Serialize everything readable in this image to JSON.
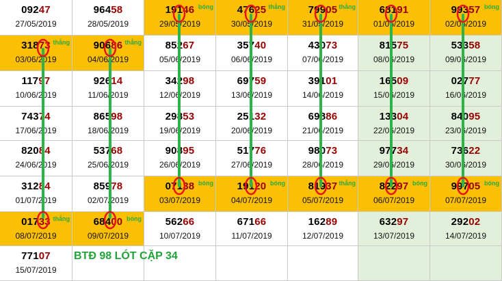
{
  "rows": [
    [
      {
        "num": "09247",
        "date": "27/05/2019",
        "tag": "",
        "bg": "white"
      },
      {
        "num": "96458",
        "date": "28/05/2019",
        "tag": "",
        "bg": "white"
      },
      {
        "num": "19146",
        "date": "29/05/2019",
        "tag": "bóng",
        "bg": "orange"
      },
      {
        "num": "47625",
        "date": "30/05/2019",
        "tag": "thẳng",
        "bg": "orange"
      },
      {
        "num": "79905",
        "date": "31/05/2019",
        "tag": "thẳng",
        "bg": "orange"
      },
      {
        "num": "68191",
        "date": "01/06/2019",
        "tag": "",
        "bg": "orange"
      },
      {
        "num": "99357",
        "date": "02/06/2019",
        "tag": "bóng",
        "bg": "orange"
      }
    ],
    [
      {
        "num": "31873",
        "date": "03/06/2019",
        "tag": "thẳng",
        "bg": "orange"
      },
      {
        "num": "90686",
        "date": "04/06/2019",
        "tag": "thẳng",
        "bg": "orange"
      },
      {
        "num": "85267",
        "date": "05/06/2019",
        "tag": "",
        "bg": "white"
      },
      {
        "num": "35740",
        "date": "06/06/2019",
        "tag": "",
        "bg": "white"
      },
      {
        "num": "43073",
        "date": "07/06/2019",
        "tag": "",
        "bg": "white"
      },
      {
        "num": "81575",
        "date": "08/06/2019",
        "tag": "",
        "bg": "green"
      },
      {
        "num": "53358",
        "date": "09/06/2019",
        "tag": "",
        "bg": "green"
      }
    ],
    [
      {
        "num": "11797",
        "date": "10/06/2019",
        "tag": "",
        "bg": "white"
      },
      {
        "num": "92614",
        "date": "11/06/2019",
        "tag": "",
        "bg": "white"
      },
      {
        "num": "34298",
        "date": "12/06/2019",
        "tag": "",
        "bg": "white"
      },
      {
        "num": "69759",
        "date": "13/06/2019",
        "tag": "",
        "bg": "white"
      },
      {
        "num": "39101",
        "date": "14/06/2019",
        "tag": "",
        "bg": "white"
      },
      {
        "num": "16509",
        "date": "15/06/2019",
        "tag": "",
        "bg": "green"
      },
      {
        "num": "02777",
        "date": "16/06/2019",
        "tag": "",
        "bg": "green"
      }
    ],
    [
      {
        "num": "74374",
        "date": "17/06/2019",
        "tag": "",
        "bg": "white"
      },
      {
        "num": "86598",
        "date": "18/06/2019",
        "tag": "",
        "bg": "white"
      },
      {
        "num": "29853",
        "date": "19/06/2019",
        "tag": "",
        "bg": "white"
      },
      {
        "num": "25132",
        "date": "20/06/2019",
        "tag": "",
        "bg": "white"
      },
      {
        "num": "69886",
        "date": "21/06/2019",
        "tag": "",
        "bg": "white"
      },
      {
        "num": "13304",
        "date": "22/06/2019",
        "tag": "",
        "bg": "green"
      },
      {
        "num": "84095",
        "date": "23/06/2019",
        "tag": "",
        "bg": "green"
      }
    ],
    [
      {
        "num": "82084",
        "date": "24/06/2019",
        "tag": "",
        "bg": "white"
      },
      {
        "num": "53768",
        "date": "25/06/2019",
        "tag": "",
        "bg": "white"
      },
      {
        "num": "90895",
        "date": "26/06/2019",
        "tag": "",
        "bg": "white"
      },
      {
        "num": "51776",
        "date": "27/06/2019",
        "tag": "",
        "bg": "white"
      },
      {
        "num": "98073",
        "date": "28/06/2019",
        "tag": "",
        "bg": "white"
      },
      {
        "num": "97734",
        "date": "29/06/2019",
        "tag": "",
        "bg": "green"
      },
      {
        "num": "73622",
        "date": "30/06/2019",
        "tag": "",
        "bg": "green"
      }
    ],
    [
      {
        "num": "31284",
        "date": "01/07/2019",
        "tag": "",
        "bg": "white"
      },
      {
        "num": "85978",
        "date": "02/07/2019",
        "tag": "",
        "bg": "white"
      },
      {
        "num": "07138",
        "date": "03/07/2019",
        "tag": "bóng",
        "bg": "orange"
      },
      {
        "num": "19120",
        "date": "04/07/2019",
        "tag": "bóng",
        "bg": "orange"
      },
      {
        "num": "81937",
        "date": "05/07/2019",
        "tag": "thẳng",
        "bg": "orange"
      },
      {
        "num": "82297",
        "date": "06/07/2019",
        "tag": "bóng",
        "bg": "orange"
      },
      {
        "num": "99705",
        "date": "07/07/2019",
        "tag": "bóng",
        "bg": "orange"
      }
    ],
    [
      {
        "num": "01733",
        "date": "08/07/2019",
        "tag": "thẳng",
        "bg": "orange"
      },
      {
        "num": "68400",
        "date": "09/07/2019",
        "tag": "bóng",
        "bg": "orange"
      },
      {
        "num": "56266",
        "date": "10/07/2019",
        "tag": "",
        "bg": "white"
      },
      {
        "num": "67166",
        "date": "11/07/2019",
        "tag": "",
        "bg": "white"
      },
      {
        "num": "16289",
        "date": "12/07/2019",
        "tag": "",
        "bg": "white"
      },
      {
        "num": "63297",
        "date": "13/07/2019",
        "tag": "",
        "bg": "green"
      },
      {
        "num": "29202",
        "date": "14/07/2019",
        "tag": "",
        "bg": "green"
      }
    ],
    [
      {
        "num": "77107",
        "date": "15/07/2019",
        "tag": "",
        "bg": "white"
      },
      {
        "num": "",
        "date": "",
        "tag": "",
        "bg": "white"
      },
      {
        "num": "",
        "date": "",
        "tag": "",
        "bg": "white"
      },
      {
        "num": "",
        "date": "",
        "tag": "",
        "bg": "white"
      },
      {
        "num": "",
        "date": "",
        "tag": "",
        "bg": "white"
      },
      {
        "num": "",
        "date": "",
        "tag": "",
        "bg": "green"
      },
      {
        "num": "",
        "date": "",
        "tag": "",
        "bg": "green"
      }
    ]
  ],
  "note": "BTĐ 98 LÓT CẶP 34",
  "colors": {
    "orange": "#fbbf04",
    "green": "#e2efda",
    "white": "#ffffff",
    "line": "#2eb34a",
    "circle": "#e8141b",
    "tail": "#9a0000",
    "tag": "#2eaa3e"
  }
}
